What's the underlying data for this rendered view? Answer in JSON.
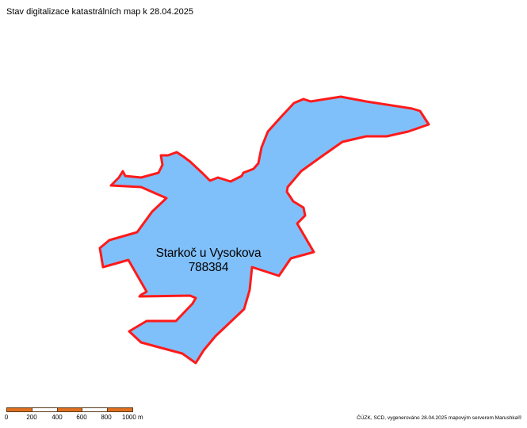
{
  "title": "Stav digitalizace katastrálních map k 28.04.2025",
  "parcel": {
    "name": "Starkoč u Vysokova",
    "code": "788384",
    "fill_color": "#80c0fa",
    "border_color": "#ff1a1a"
  },
  "scalebar": {
    "colors": [
      "#e07020",
      "#ffffff",
      "#e07020",
      "#ffffff",
      "#e07020"
    ],
    "ticks": [
      "0",
      "200",
      "400",
      "600",
      "800",
      "1000 m"
    ]
  },
  "credits": "ČÚZK, SCD, vygenerováno 28.04.2025 mapovým serverem Marushka®"
}
